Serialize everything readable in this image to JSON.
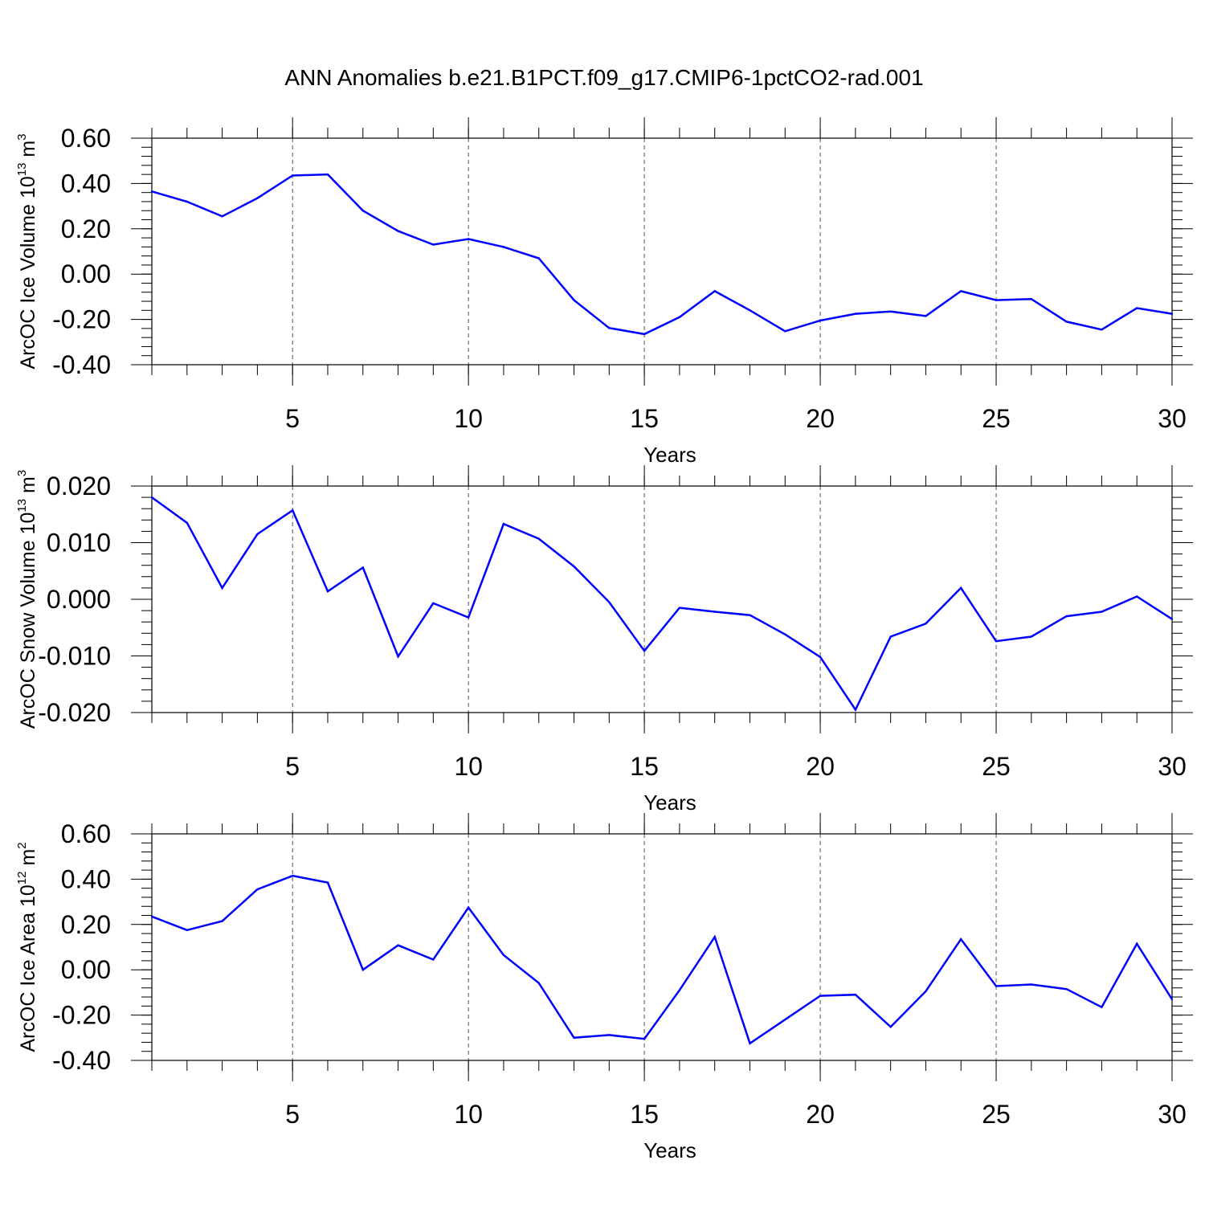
{
  "figure": {
    "title": "ANN Anomalies b.e21.B1PCT.f09_g17.CMIP6-1pctCO2-rad.001"
  },
  "colors": {
    "line": "#0000ff",
    "axis": "#000000",
    "grid": "#555555"
  },
  "chart_data": [
    {
      "type": "line",
      "xlabel": "Years",
      "ylabel": {
        "text": "ArcOC Ice Volume 10",
        "exp": "13",
        "unit": " m",
        "unit_exp": "3"
      },
      "xlim": [
        1,
        30
      ],
      "ylim": [
        -0.4,
        0.6
      ],
      "x_ticks": [
        5,
        10,
        15,
        20,
        25,
        30
      ],
      "x_tick_labels": [
        "5",
        "10",
        "15",
        "20",
        "25",
        "30"
      ],
      "y_ticks": [
        -0.4,
        -0.2,
        0.0,
        0.2,
        0.4,
        0.6
      ],
      "y_tick_labels": [
        "-0.40",
        "-0.20",
        "0.00",
        "0.20",
        "0.40",
        "0.60"
      ],
      "grid": "vertical dashed at major x ticks",
      "x": [
        1,
        2,
        3,
        4,
        5,
        6,
        7,
        8,
        9,
        10,
        11,
        12,
        13,
        14,
        15,
        16,
        17,
        18,
        19,
        20,
        21,
        22,
        23,
        24,
        25,
        26,
        27,
        28,
        29,
        30
      ],
      "y": [
        0.365,
        0.32,
        0.255,
        0.335,
        0.435,
        0.44,
        0.28,
        0.19,
        0.13,
        0.155,
        0.12,
        0.07,
        -0.115,
        -0.238,
        -0.265,
        -0.19,
        -0.075,
        -0.16,
        -0.252,
        -0.205,
        -0.175,
        -0.165,
        -0.185,
        -0.075,
        -0.115,
        -0.11,
        -0.21,
        -0.245,
        -0.15,
        -0.175
      ]
    },
    {
      "type": "line",
      "xlabel": "Years",
      "ylabel": {
        "text": "ArcOC Snow Volume 10",
        "exp": "13",
        "unit": " m",
        "unit_exp": "3"
      },
      "xlim": [
        1,
        30
      ],
      "ylim": [
        -0.02,
        0.02
      ],
      "x_ticks": [
        5,
        10,
        15,
        20,
        25,
        30
      ],
      "x_tick_labels": [
        "5",
        "10",
        "15",
        "20",
        "25",
        "30"
      ],
      "y_ticks": [
        -0.02,
        -0.01,
        0.0,
        0.01,
        0.02
      ],
      "y_tick_labels": [
        "-0.020",
        "-0.010",
        "0.000",
        "0.010",
        "0.020"
      ],
      "grid": "vertical dashed at major x ticks",
      "x": [
        1,
        2,
        3,
        4,
        5,
        6,
        7,
        8,
        9,
        10,
        11,
        12,
        13,
        14,
        15,
        16,
        17,
        18,
        19,
        20,
        21,
        22,
        23,
        24,
        25,
        26,
        27,
        28,
        29,
        30
      ],
      "y": [
        0.018,
        0.0135,
        0.002,
        0.0115,
        0.0157,
        0.0014,
        0.0056,
        -0.0101,
        -0.0007,
        -0.0032,
        0.0133,
        0.0107,
        0.0058,
        -0.0005,
        -0.0091,
        -0.0015,
        -0.0022,
        -0.0028,
        -0.0062,
        -0.0102,
        -0.0195,
        -0.0066,
        -0.0043,
        0.002,
        -0.0074,
        -0.0066,
        -0.003,
        -0.0022,
        0.0005,
        -0.0035
      ]
    },
    {
      "type": "line",
      "xlabel": "Years",
      "ylabel": {
        "text": "ArcOC Ice Area 10",
        "exp": "12",
        "unit": " m",
        "unit_exp": "2"
      },
      "xlim": [
        1,
        30
      ],
      "ylim": [
        -0.4,
        0.6
      ],
      "x_ticks": [
        5,
        10,
        15,
        20,
        25,
        30
      ],
      "x_tick_labels": [
        "5",
        "10",
        "15",
        "20",
        "25",
        "30"
      ],
      "y_ticks": [
        -0.4,
        -0.2,
        0.0,
        0.2,
        0.4,
        0.6
      ],
      "y_tick_labels": [
        "-0.40",
        "-0.20",
        "0.00",
        "0.20",
        "0.40",
        "0.60"
      ],
      "grid": "vertical dashed at major x ticks",
      "x": [
        1,
        2,
        3,
        4,
        5,
        6,
        7,
        8,
        9,
        10,
        11,
        12,
        13,
        14,
        15,
        16,
        17,
        18,
        19,
        20,
        21,
        22,
        23,
        24,
        25,
        26,
        27,
        28,
        29,
        30
      ],
      "y": [
        0.235,
        0.175,
        0.215,
        0.355,
        0.415,
        0.385,
        0.0,
        0.108,
        0.045,
        0.275,
        0.065,
        -0.058,
        -0.3,
        -0.288,
        -0.305,
        -0.09,
        0.145,
        -0.325,
        -0.22,
        -0.115,
        -0.11,
        -0.252,
        -0.095,
        0.135,
        -0.072,
        -0.065,
        -0.085,
        -0.165,
        0.115,
        -0.13
      ]
    }
  ]
}
